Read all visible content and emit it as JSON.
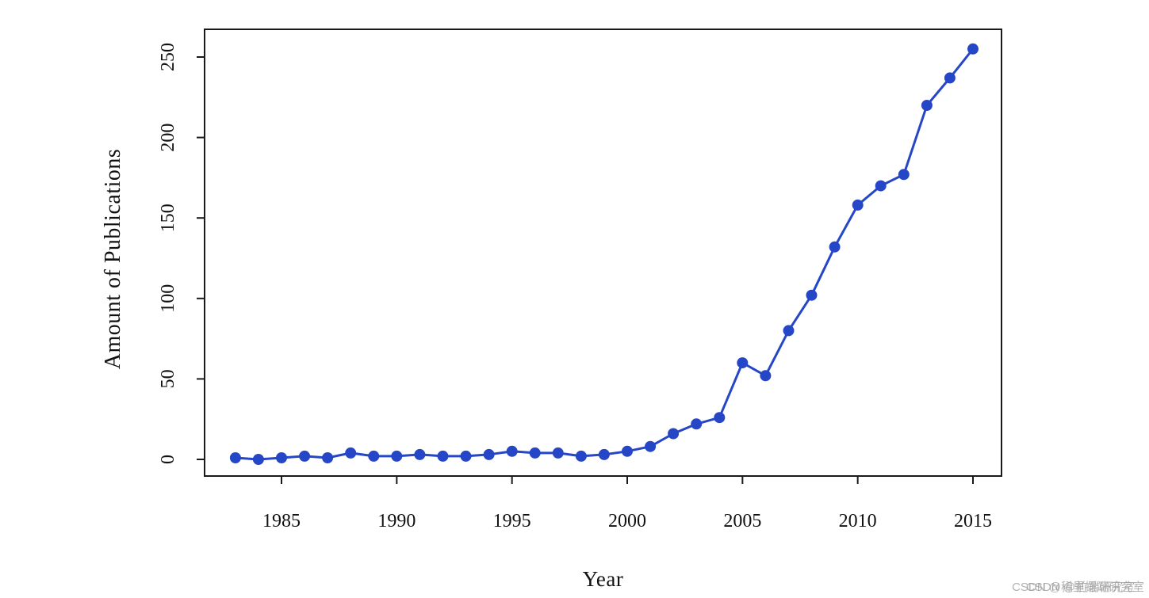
{
  "figure": {
    "background": "#ffffff",
    "watermark": {
      "layers": [
        "CSDN @稀里摆端研究室",
        "CSDN @前端研究室"
      ],
      "color": "#9a9a9a"
    }
  },
  "chart_data": {
    "type": "line",
    "title": "",
    "xlabel": "Year",
    "ylabel": "Amount of Publications",
    "x": [
      1983,
      1984,
      1985,
      1986,
      1987,
      1988,
      1989,
      1990,
      1991,
      1992,
      1993,
      1994,
      1995,
      1996,
      1997,
      1998,
      1999,
      2000,
      2001,
      2002,
      2003,
      2004,
      2005,
      2006,
      2007,
      2008,
      2009,
      2010,
      2011,
      2012,
      2013,
      2014,
      2015
    ],
    "series": [
      {
        "name": "Amount of Publications",
        "values": [
          1,
          0,
          1,
          2,
          1,
          4,
          2,
          2,
          3,
          2,
          2,
          3,
          5,
          4,
          4,
          2,
          3,
          5,
          8,
          16,
          22,
          26,
          60,
          52,
          80,
          102,
          132,
          158,
          170,
          177,
          220,
          237,
          255
        ]
      }
    ],
    "xlim": [
      1982.5,
      2016.2
    ],
    "ylim": [
      0,
      255
    ],
    "x_ticks": [
      1985,
      1990,
      1995,
      2000,
      2005,
      2010,
      2015
    ],
    "y_ticks": [
      0,
      50,
      100,
      150,
      200,
      250
    ],
    "grid": false,
    "legend": "none",
    "line_color": "#2646c8",
    "marker": "circle",
    "marker_color": "#2646c8",
    "axis_color": "#1a1a1a",
    "tick_label_color": "#111111"
  }
}
